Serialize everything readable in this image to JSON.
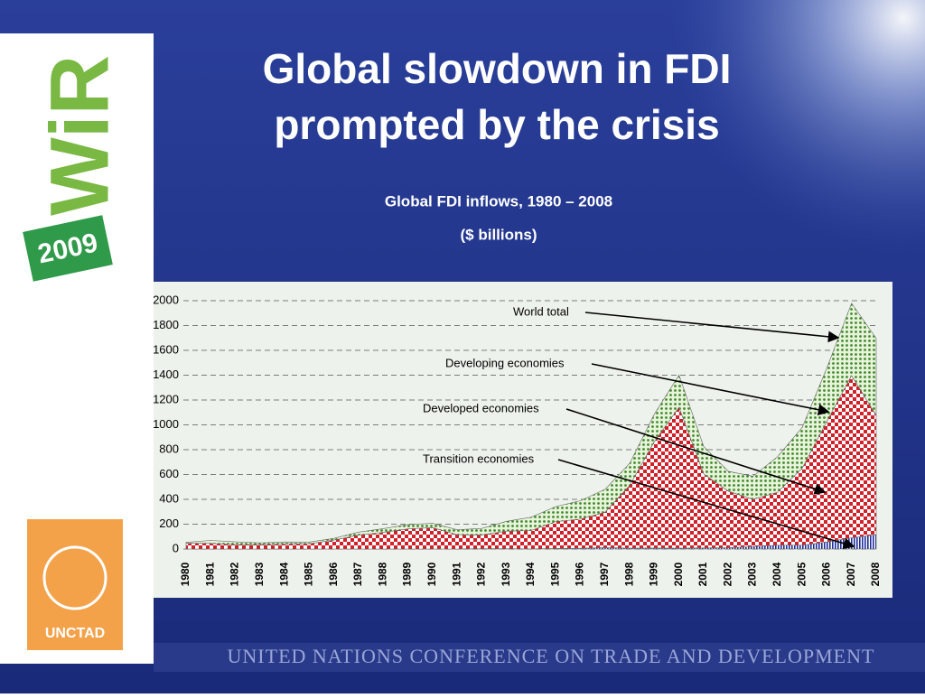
{
  "header": {
    "title_line1": "Global slowdown in FDI",
    "title_line2": "prompted by the crisis",
    "logo_text": "WiR",
    "logo_year": "2009",
    "org_logo": "UNCTAD"
  },
  "footer": "UNITED NATIONS CONFERENCE ON TRADE AND DEVELOPMENT",
  "chart_data": {
    "type": "stacked-area",
    "title": "Global FDI inflows, 1980 – 2008",
    "subtitle": "($ billions)",
    "categories": [
      "1980",
      "1981",
      "1982",
      "1983",
      "1984",
      "1985",
      "1986",
      "1987",
      "1988",
      "1989",
      "1990",
      "1991",
      "1992",
      "1993",
      "1994",
      "1995",
      "1996",
      "1997",
      "1998",
      "1999",
      "2000",
      "2001",
      "2002",
      "2003",
      "2004",
      "2005",
      "2006",
      "2007",
      "2008"
    ],
    "series": [
      {
        "name": "Transition economies",
        "color": "#1f2f9a",
        "values": [
          0,
          0,
          0,
          0,
          0,
          0,
          0,
          0,
          0,
          0,
          0,
          0,
          2,
          2,
          1,
          4,
          6,
          11,
          7,
          8,
          7,
          9,
          11,
          20,
          31,
          31,
          57,
          91,
          114
        ]
      },
      {
        "name": "Developed economies",
        "color": "#d0202a",
        "values": [
          47,
          45,
          35,
          36,
          39,
          42,
          72,
          112,
          134,
          162,
          172,
          115,
          111,
          142,
          148,
          217,
          235,
          285,
          506,
          858,
          1134,
          596,
          455,
          380,
          426,
          620,
          972,
          1306,
          962
        ]
      },
      {
        "name": "Developing economies",
        "color": "#3f8a2a",
        "values": [
          7,
          24,
          23,
          14,
          18,
          14,
          14,
          24,
          30,
          35,
          35,
          40,
          53,
          79,
          107,
          121,
          148,
          185,
          177,
          221,
          260,
          221,
          160,
          186,
          287,
          329,
          430,
          582,
          621
        ]
      }
    ],
    "annotations": [
      "World total"
    ],
    "ylim": [
      0,
      2000
    ],
    "yticks": [
      0,
      200,
      400,
      600,
      800,
      1000,
      1200,
      1400,
      1600,
      1800,
      2000
    ],
    "grid": true
  }
}
